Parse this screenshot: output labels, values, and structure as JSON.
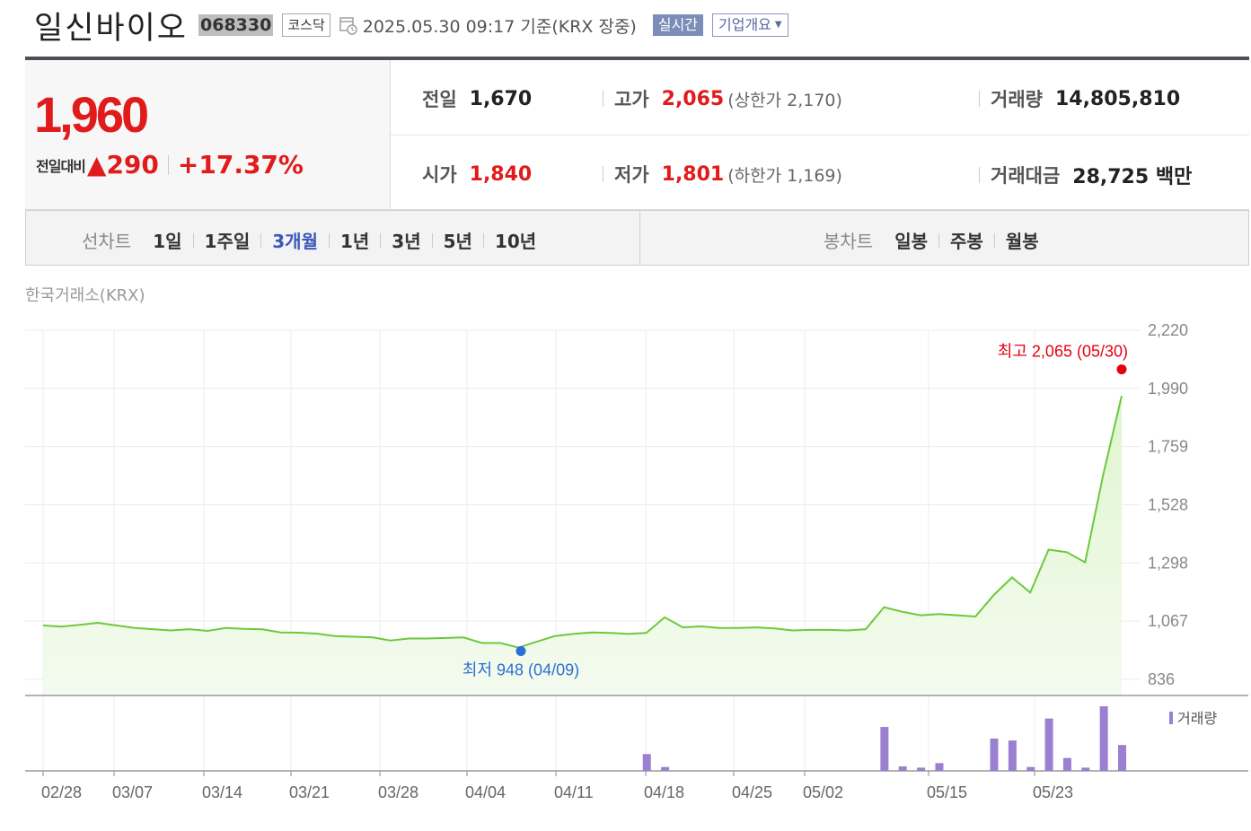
{
  "header": {
    "name": "일신바이오",
    "code": "068330",
    "market": "코스닥",
    "timestamp": "2025.05.30 09:17 기준(KRX 장중)",
    "realtime": "실시간",
    "company_overview": "기업개요"
  },
  "quote": {
    "price": "1,960",
    "change_label": "전일대비",
    "change_arrow": "▲",
    "change_amount": "290",
    "change_pct": "+17.37%",
    "stats": {
      "prev_label": "전일",
      "prev": "1,670",
      "high_label": "고가",
      "high": "2,065",
      "upper_limit": "(상한가 2,170)",
      "volume_label": "거래량",
      "volume": "14,805,810",
      "open_label": "시가",
      "open": "1,840",
      "low_label": "저가",
      "low": "1,801",
      "lower_limit": "(하한가 1,169)",
      "value_label": "거래대금",
      "value": "28,725 백만"
    }
  },
  "tabs": {
    "line_label": "선차트",
    "line": [
      "1일",
      "1주일",
      "3개월",
      "1년",
      "3년",
      "5년",
      "10년"
    ],
    "active": "3개월",
    "candle_label": "봉차트",
    "candle": [
      "일봉",
      "주봉",
      "월봉"
    ]
  },
  "chart_source": "한국거래소(KRX)",
  "chart_data": {
    "type": "area",
    "y_ticks": [
      "2,220",
      "1,990",
      "1,759",
      "1,528",
      "1,298",
      "1,067",
      "836"
    ],
    "ylim": [
      836,
      2220
    ],
    "x_ticks": [
      "02/28",
      "03/07",
      "03/14",
      "03/21",
      "03/28",
      "04/04",
      "04/11",
      "04/18",
      "04/25",
      "05/02",
      "05/15",
      "05/23"
    ],
    "series": [
      {
        "values": [
          1050,
          1045,
          1052,
          1060,
          1050,
          1040,
          1035,
          1030,
          1035,
          1028,
          1040,
          1036,
          1034,
          1022,
          1021,
          1017,
          1007,
          1005,
          1003,
          990,
          998,
          998,
          1000,
          1002,
          980,
          980,
          962,
          985,
          1008,
          1016,
          1022,
          1020,
          1016,
          1020,
          1082,
          1042,
          1046,
          1040,
          1040,
          1042,
          1038,
          1030,
          1032,
          1032,
          1030,
          1035,
          1122,
          1104,
          1090,
          1095,
          1090,
          1085,
          1170,
          1240,
          1180,
          1350,
          1340,
          1300,
          1650,
          1960
        ]
      }
    ],
    "annotations": {
      "high_text": "최고 2,065 (05/30)",
      "high_value": 2065,
      "low_text": "최저 948 (04/09)",
      "low_value": 948
    },
    "volume_legend": "거래량",
    "volume_bars": [
      {
        "i": 34,
        "v": 0.26
      },
      {
        "i": 35,
        "v": 0.06
      },
      {
        "i": 47,
        "v": 0.68
      },
      {
        "i": 48,
        "v": 0.07
      },
      {
        "i": 49,
        "v": 0.05
      },
      {
        "i": 50,
        "v": 0.12
      },
      {
        "i": 53,
        "v": 0.5
      },
      {
        "i": 54,
        "v": 0.47
      },
      {
        "i": 55,
        "v": 0.06
      },
      {
        "i": 56,
        "v": 0.81
      },
      {
        "i": 57,
        "v": 0.2
      },
      {
        "i": 58,
        "v": 0.05
      },
      {
        "i": 59,
        "v": 1.0
      },
      {
        "i": 60,
        "v": 0.4
      }
    ],
    "colors": {
      "line": "#6cc93b",
      "fill": "#dff5cf",
      "high": "#e60012",
      "low": "#2a6fd6",
      "volume": "#9b7fd1"
    }
  }
}
